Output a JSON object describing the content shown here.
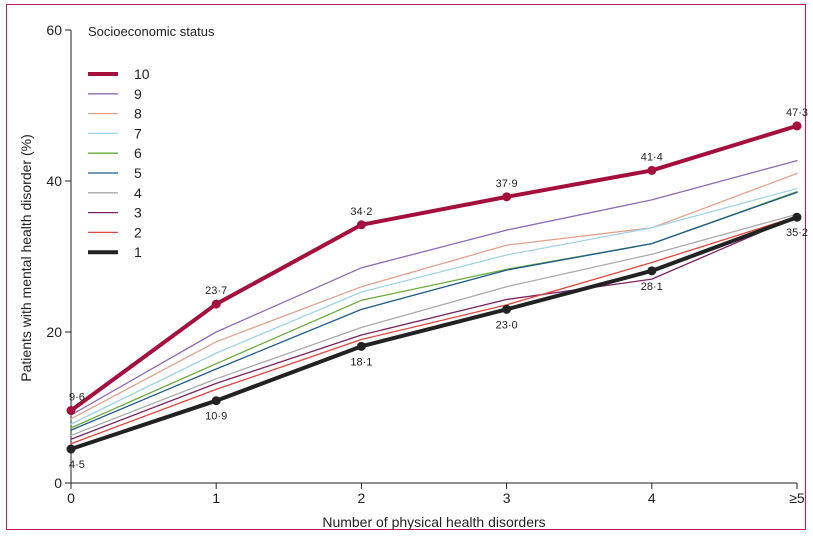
{
  "chart_data": {
    "type": "line",
    "xlabel": "Number of physical health disorders",
    "ylabel": "Patients with mental health disorder (%)",
    "categories": [
      "0",
      "1",
      "2",
      "3",
      "4",
      "≥5"
    ],
    "ylim": [
      0,
      60
    ],
    "yticks": [
      0,
      20,
      40,
      60
    ],
    "grid": false,
    "legend_title": "Socioeconomic status",
    "legend_placement": "top-left",
    "series": [
      {
        "name": "10",
        "color": "#a50f3c",
        "values": [
          9.6,
          23.7,
          34.2,
          37.9,
          41.4,
          47.3
        ],
        "labels": [
          "9·6",
          "23·7",
          "34·2",
          "37·9",
          "41·4",
          "47·3"
        ],
        "emphasis": true
      },
      {
        "name": "9",
        "color": "#8e6bb5",
        "values": [
          9.0,
          20.0,
          28.5,
          33.5,
          37.5,
          42.7
        ]
      },
      {
        "name": "8",
        "color": "#e5a08c",
        "values": [
          8.5,
          18.7,
          26.0,
          31.5,
          33.8,
          41.0
        ]
      },
      {
        "name": "7",
        "color": "#9ed3e6",
        "values": [
          7.8,
          17.2,
          25.3,
          30.2,
          33.8,
          39.0
        ]
      },
      {
        "name": "6",
        "color": "#6aaa3c",
        "values": [
          7.3,
          15.8,
          24.2,
          28.3,
          31.7,
          38.6
        ]
      },
      {
        "name": "5",
        "color": "#1e5b8c",
        "values": [
          7.0,
          15.1,
          23.0,
          28.2,
          31.7,
          38.5
        ]
      },
      {
        "name": "4",
        "color": "#a9a9a9",
        "values": [
          6.3,
          13.8,
          20.6,
          26.0,
          30.3,
          35.6
        ]
      },
      {
        "name": "3",
        "color": "#7b2262",
        "values": [
          5.8,
          13.2,
          19.6,
          24.3,
          27.0,
          35.3
        ]
      },
      {
        "name": "2",
        "color": "#e2453c",
        "values": [
          5.2,
          12.4,
          19.0,
          23.6,
          29.2,
          35.3
        ]
      },
      {
        "name": "1",
        "color": "#222222",
        "values": [
          4.5,
          10.9,
          18.1,
          23.0,
          28.1,
          35.2
        ],
        "labels": [
          "4·5",
          "10·9",
          "18·1",
          "23·0",
          "28·1",
          "35·2"
        ],
        "emphasis": true
      }
    ]
  }
}
